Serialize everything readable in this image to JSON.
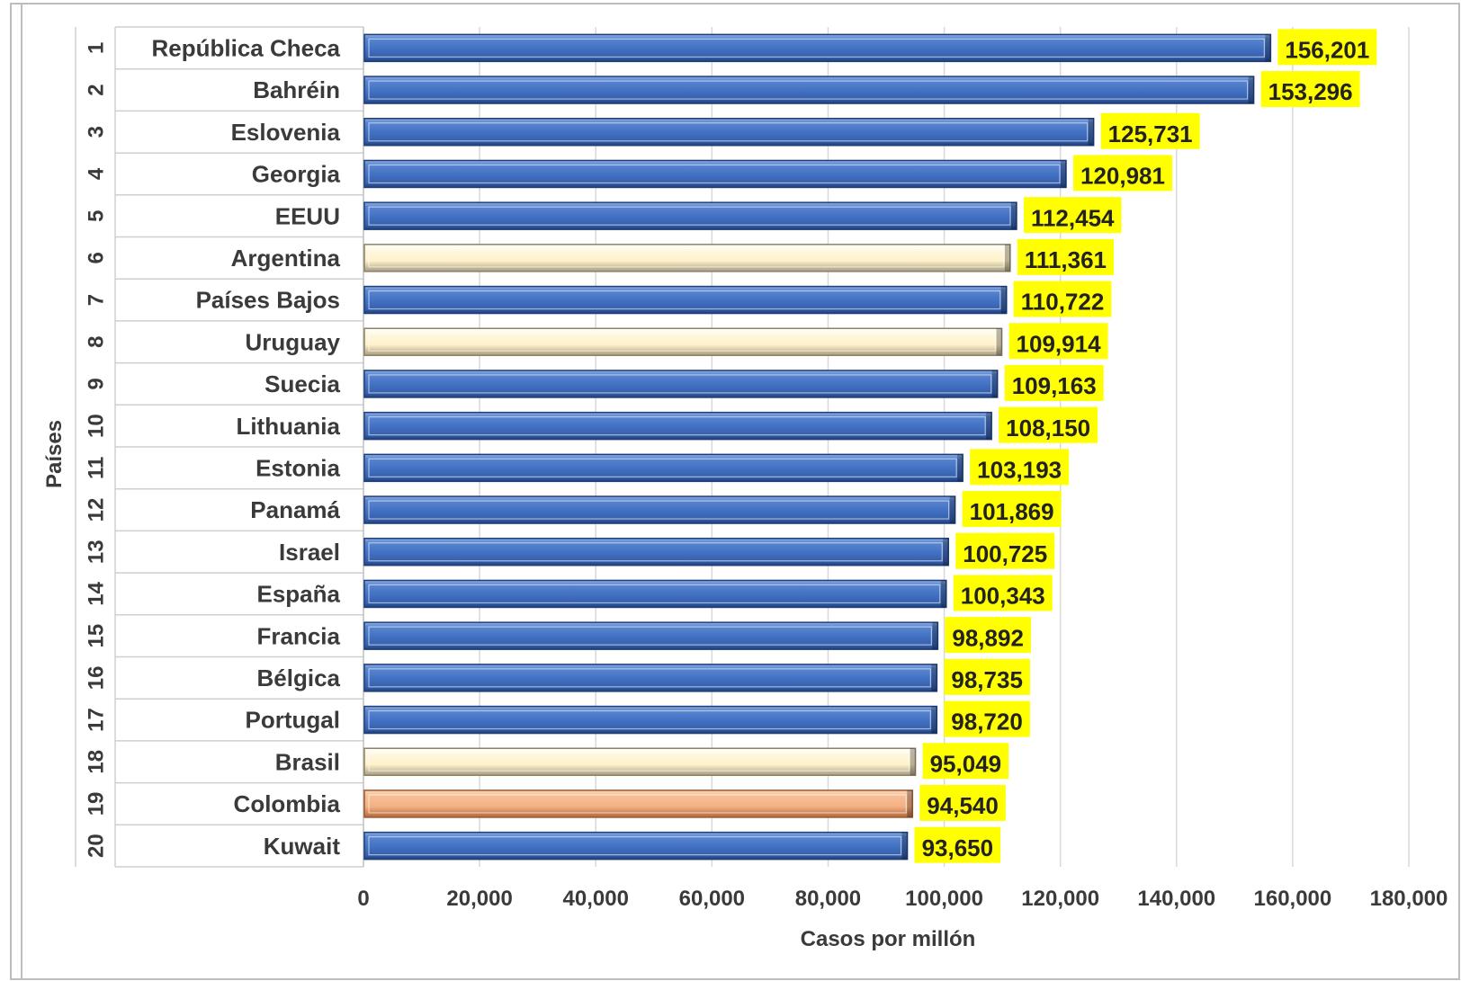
{
  "chart_data": {
    "type": "bar",
    "orientation": "horizontal",
    "xlabel": "Casos por millón",
    "ylabel": "Países",
    "xlim": [
      0,
      180000
    ],
    "xticks": [
      0,
      20000,
      40000,
      60000,
      80000,
      100000,
      120000,
      140000,
      160000,
      180000
    ],
    "xtick_labels": [
      "0",
      "20,000",
      "40,000",
      "60,000",
      "80,000",
      "100,000",
      "120,000",
      "140,000",
      "160,000",
      "180,000"
    ],
    "grid": "vertical",
    "data_label_background": "#ffff00",
    "colors": {
      "blue": "#4472c4",
      "cream": "#fff2cc",
      "orange": "#f4b183"
    },
    "categories": [
      {
        "rank": "1",
        "name": "República Checa",
        "value": 156201,
        "label": "156,201",
        "color": "blue"
      },
      {
        "rank": "2",
        "name": "Bahréin",
        "value": 153296,
        "label": "153,296",
        "color": "blue"
      },
      {
        "rank": "3",
        "name": "Eslovenia",
        "value": 125731,
        "label": "125,731",
        "color": "blue"
      },
      {
        "rank": "4",
        "name": "Georgia",
        "value": 120981,
        "label": "120,981",
        "color": "blue"
      },
      {
        "rank": "5",
        "name": "EEUU",
        "value": 112454,
        "label": "112,454",
        "color": "blue"
      },
      {
        "rank": "6",
        "name": "Argentina",
        "value": 111361,
        "label": "111,361",
        "color": "cream"
      },
      {
        "rank": "7",
        "name": "Países Bajos",
        "value": 110722,
        "label": "110,722",
        "color": "blue"
      },
      {
        "rank": "8",
        "name": "Uruguay",
        "value": 109914,
        "label": "109,914",
        "color": "cream"
      },
      {
        "rank": "9",
        "name": "Suecia",
        "value": 109163,
        "label": "109,163",
        "color": "blue"
      },
      {
        "rank": "10",
        "name": "Lithuania",
        "value": 108150,
        "label": "108,150",
        "color": "blue"
      },
      {
        "rank": "11",
        "name": "Estonia",
        "value": 103193,
        "label": "103,193",
        "color": "blue"
      },
      {
        "rank": "12",
        "name": "Panamá",
        "value": 101869,
        "label": "101,869",
        "color": "blue"
      },
      {
        "rank": "13",
        "name": "Israel",
        "value": 100725,
        "label": "100,725",
        "color": "blue"
      },
      {
        "rank": "14",
        "name": "España",
        "value": 100343,
        "label": "100,343",
        "color": "blue"
      },
      {
        "rank": "15",
        "name": "Francia",
        "value": 98892,
        "label": "98,892",
        "color": "blue"
      },
      {
        "rank": "16",
        "name": "Bélgica",
        "value": 98735,
        "label": "98,735",
        "color": "blue"
      },
      {
        "rank": "17",
        "name": "Portugal",
        "value": 98720,
        "label": "98,720",
        "color": "blue"
      },
      {
        "rank": "18",
        "name": "Brasil",
        "value": 95049,
        "label": "95,049",
        "color": "cream"
      },
      {
        "rank": "19",
        "name": "Colombia",
        "value": 94540,
        "label": "94,540",
        "color": "orange"
      },
      {
        "rank": "20",
        "name": "Kuwait",
        "value": 93650,
        "label": "93,650",
        "color": "blue"
      }
    ]
  }
}
